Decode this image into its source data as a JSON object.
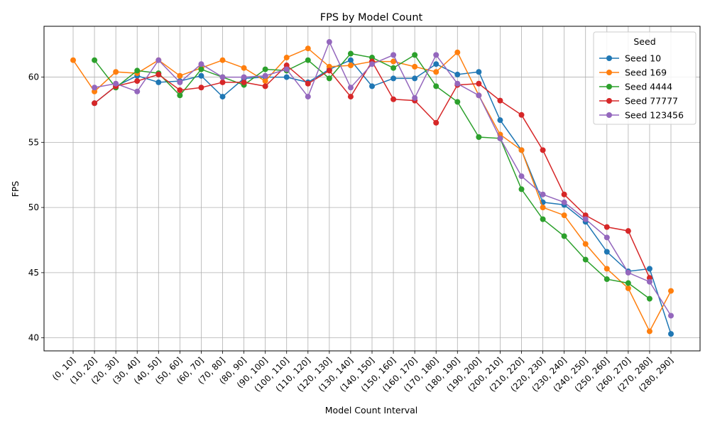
{
  "chart_data": {
    "type": "line",
    "title": "FPS by Model Count",
    "xlabel": "Model Count Interval",
    "ylabel": "FPS",
    "ylim": [
      39.0,
      63.9
    ],
    "yticks": [
      40,
      45,
      50,
      55,
      60
    ],
    "grid": true,
    "legend": {
      "title": "Seed",
      "placement": "top-right"
    },
    "categories": [
      "(0, 10]",
      "(10, 20]",
      "(20, 30]",
      "(30, 40]",
      "(40, 50]",
      "(50, 60]",
      "(60, 70]",
      "(70, 80]",
      "(80, 90]",
      "(90, 100]",
      "(100, 110]",
      "(110, 120]",
      "(120, 130]",
      "(130, 140]",
      "(140, 150]",
      "(150, 160]",
      "(160, 170]",
      "(170, 180]",
      "(180, 190]",
      "(190, 200]",
      "(200, 210]",
      "(210, 220]",
      "(220, 230]",
      "(230, 240]",
      "(240, 250]",
      "(250, 260]",
      "(260, 270]",
      "(270, 280]",
      "(280, 290]"
    ],
    "series": [
      {
        "name": "Seed 10",
        "color": "#1f77b4",
        "values": [
          null,
          58.0,
          59.3,
          60.1,
          59.6,
          59.7,
          60.1,
          58.5,
          59.9,
          60.0,
          60.0,
          59.6,
          60.6,
          61.3,
          59.3,
          59.9,
          59.9,
          61.0,
          60.2,
          60.4,
          56.7,
          54.4,
          50.4,
          50.2,
          48.9,
          46.6,
          45.1,
          45.3,
          40.3
        ]
      },
      {
        "name": "Seed 169",
        "color": "#ff7f0e",
        "values": [
          61.3,
          58.9,
          60.4,
          60.3,
          61.3,
          60.1,
          60.7,
          61.3,
          60.7,
          59.7,
          61.5,
          62.2,
          60.8,
          60.9,
          61.2,
          61.2,
          60.8,
          60.4,
          61.9,
          58.6,
          55.6,
          54.4,
          50.0,
          49.4,
          47.2,
          45.3,
          43.8,
          40.5,
          43.6
        ]
      },
      {
        "name": "Seed 4444",
        "color": "#2ca02c",
        "values": [
          null,
          61.3,
          59.2,
          60.5,
          60.3,
          58.6,
          60.6,
          60.0,
          59.4,
          60.6,
          60.5,
          61.3,
          59.9,
          61.8,
          61.5,
          60.7,
          61.7,
          59.3,
          58.1,
          55.4,
          55.3,
          51.4,
          49.1,
          47.8,
          46.0,
          44.5,
          44.2,
          43.0,
          null
        ]
      },
      {
        "name": "Seed 77777",
        "color": "#d62728",
        "values": [
          null,
          58.0,
          59.3,
          59.7,
          60.2,
          59.0,
          59.2,
          59.6,
          59.6,
          59.3,
          60.9,
          59.5,
          60.5,
          58.5,
          61.2,
          58.3,
          58.2,
          56.5,
          59.4,
          59.5,
          58.2,
          57.1,
          54.4,
          51.0,
          49.4,
          48.5,
          48.2,
          44.6,
          null
        ]
      },
      {
        "name": "Seed 123456",
        "color": "#9467bd",
        "values": [
          null,
          59.2,
          59.5,
          58.9,
          61.3,
          59.6,
          61.0,
          60.0,
          60.0,
          60.1,
          60.6,
          58.5,
          62.7,
          59.2,
          61.0,
          61.7,
          58.4,
          61.7,
          59.5,
          58.6,
          55.3,
          52.4,
          51.0,
          50.4,
          49.1,
          47.7,
          45.0,
          44.3,
          41.7
        ]
      }
    ]
  }
}
